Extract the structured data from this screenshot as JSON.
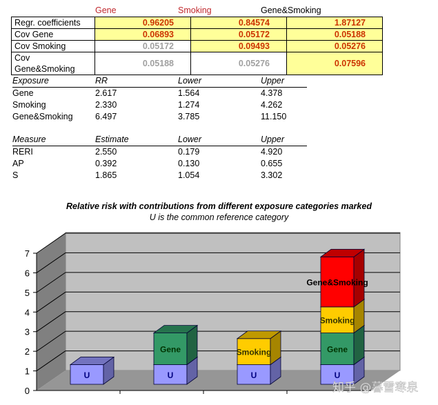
{
  "coef_table": {
    "col_headers": [
      "Gene",
      "Smoking",
      "Gene&Smoking"
    ],
    "rows": [
      {
        "label": "Regr. coefficients",
        "values": [
          "0.96205",
          "0.84574",
          "1.87127"
        ],
        "highlight": [
          true,
          true,
          true
        ]
      },
      {
        "label": "Cov Gene",
        "values": [
          "0.06893",
          "0.05172",
          "0.05188"
        ],
        "highlight": [
          true,
          true,
          true
        ]
      },
      {
        "label": "Cov Smoking",
        "values": [
          "0.05172",
          "0.09493",
          "0.05276"
        ],
        "highlight": [
          false,
          true,
          true
        ]
      },
      {
        "label": "Cov Gene&Smoking",
        "values": [
          "0.05188",
          "0.05276",
          "0.07596"
        ],
        "highlight": [
          false,
          false,
          true
        ]
      }
    ]
  },
  "exposure_table": {
    "headers": [
      "Exposure",
      "RR",
      "Lower",
      "Upper"
    ],
    "rows": [
      [
        "Gene",
        "2.617",
        "1.564",
        "4.378"
      ],
      [
        "Smoking",
        "2.330",
        "1.274",
        "4.262"
      ],
      [
        "Gene&Smoking",
        "6.497",
        "3.785",
        "11.150"
      ]
    ]
  },
  "measure_table": {
    "headers": [
      "Measure",
      "Estimate",
      "Lower",
      "Upper"
    ],
    "rows": [
      [
        "RERI",
        "2.550",
        "0.179",
        "4.920"
      ],
      [
        "AP",
        "0.392",
        "0.130",
        "0.655"
      ],
      [
        "S",
        "1.865",
        "1.054",
        "3.302"
      ]
    ]
  },
  "colors": {
    "header_red": "#c0282d",
    "highlight_bg": "#ffff99",
    "highlight_text": "#cc3300",
    "muted_text": "#a0a0a0",
    "U": "#9999ff",
    "Gene": "#339966",
    "Smoking": "#ffcc00",
    "Gene&Smoking": "#ff0000"
  },
  "chart_data": {
    "type": "bar",
    "stacked": true,
    "three_d": true,
    "title": "Relative risk with contributions from different exposure categories marked",
    "subtitle": "U is the common reference category",
    "xlabel": "",
    "ylabel": "",
    "ylim": [
      0,
      7
    ],
    "yticks": [
      "0",
      "1",
      "2",
      "3",
      "4",
      "5",
      "6",
      "7"
    ],
    "grid": true,
    "legend": "none",
    "categories": [
      "",
      "",
      "",
      ""
    ],
    "series": [
      {
        "name": "U",
        "values": [
          1,
          1,
          1,
          1
        ]
      },
      {
        "name": "Gene",
        "values": [
          0,
          1.617,
          0,
          1.617
        ]
      },
      {
        "name": "Smoking",
        "values": [
          0,
          0,
          1.33,
          1.33
        ]
      },
      {
        "name": "Gene&Smoking",
        "values": [
          0,
          0,
          0,
          2.55
        ]
      }
    ],
    "segment_labels": [
      [
        "U"
      ],
      [
        "U",
        "Gene"
      ],
      [
        "U",
        "Smoking"
      ],
      [
        "U",
        "Gene",
        "Smoking",
        "Gene&Smoking"
      ]
    ]
  },
  "watermark": "知乎 @暮雪寒泉"
}
